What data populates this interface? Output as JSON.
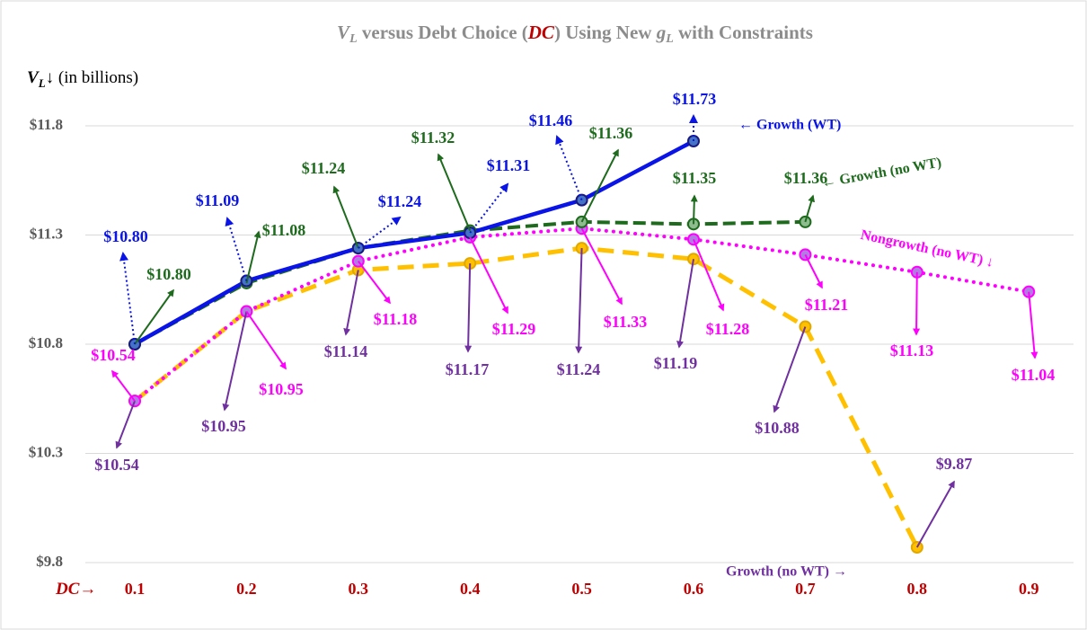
{
  "chart_data": {
    "type": "line",
    "title": [
      "V",
      "L",
      " versus Debt Choice (",
      "DC",
      ") Using New ",
      "g",
      "L",
      " with Constraints"
    ],
    "y_label": [
      "V",
      "L",
      "↓ (in billions)"
    ],
    "x_label": [
      "DC",
      "→"
    ],
    "categories": [
      "0.1",
      "0.2",
      "0.3",
      "0.4",
      "0.5",
      "0.6",
      "0.7",
      "0.8",
      "0.9"
    ],
    "ylim": [
      9.8,
      12.3
    ],
    "yticks": [
      {
        "value": 9.8,
        "label": "$9.8"
      },
      {
        "value": 10.3,
        "label": "$10.3"
      },
      {
        "value": 10.8,
        "label": "$10.8"
      },
      {
        "value": 11.3,
        "label": "$11.3"
      },
      {
        "value": 11.8,
        "label": "$11.8"
      }
    ],
    "grid": true,
    "series": [
      {
        "name": "Growth (no WT) →",
        "color": "#ffc000",
        "label_color": "#7030a0",
        "values": [
          10.54,
          10.95,
          11.14,
          11.17,
          11.24,
          11.19,
          10.88,
          9.87,
          null
        ],
        "value_labels": [
          "$10.54",
          "$10.95",
          "$11.14",
          "$11.17",
          "$11.24",
          "$11.19",
          "$10.88",
          "$9.87",
          null
        ]
      },
      {
        "name": "Nongrowth (no WT) ↓",
        "color": "#ff00ff",
        "label_color": "#ff00ff",
        "values": [
          10.54,
          10.95,
          11.18,
          11.29,
          11.33,
          11.28,
          11.21,
          11.13,
          11.04
        ],
        "value_labels": [
          "$10.54",
          "$10.95",
          "$11.18",
          "$11.29",
          "$11.33",
          "$11.28",
          "$11.21",
          "$11.13",
          "$11.04"
        ]
      },
      {
        "name": "← Growth (no WT)",
        "color": "#1e6b1e",
        "label_color": "#1e6b1e",
        "values": [
          10.8,
          11.08,
          11.24,
          11.32,
          11.36,
          11.35,
          11.36,
          null,
          null
        ],
        "value_labels": [
          "$10.80",
          "$11.08",
          "$11.24",
          "$11.32",
          "$11.36",
          "$11.35",
          "$11.36",
          null,
          null
        ]
      },
      {
        "name": "← Growth (WT)",
        "color": "#0a14e6",
        "label_color": "#0a14e6",
        "values": [
          10.8,
          11.09,
          11.24,
          11.31,
          11.46,
          11.73,
          null,
          null,
          null
        ],
        "value_labels": [
          "$10.80",
          "$11.09",
          "$11.24",
          "$11.31",
          "$11.46",
          "$11.73",
          null,
          null,
          null
        ]
      }
    ]
  }
}
